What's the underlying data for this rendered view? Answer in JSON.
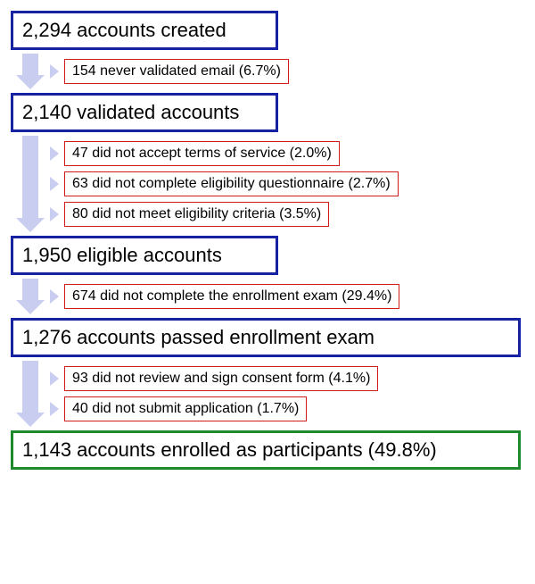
{
  "type": "flowchart",
  "background_color": "#ffffff",
  "arrow_color": "#c9cdf0",
  "stage_border_color": "#1522a3",
  "final_border_color": "#1e8a2e",
  "dropout_border_color": "#d11a1a",
  "stage_fontsize": 22,
  "dropout_fontsize": 16,
  "stages": [
    {
      "label": "2,294 accounts created",
      "width_mode": "fit",
      "dropouts": [
        {
          "label": "154 never validated email (6.7%)"
        }
      ]
    },
    {
      "label": "2,140 validated accounts",
      "width_mode": "fit",
      "dropouts": [
        {
          "label": "47 did not accept terms of service (2.0%)"
        },
        {
          "label": "63 did not complete eligibility questionnaire (2.7%)"
        },
        {
          "label": "80 did not meet eligibility criteria (3.5%)"
        }
      ]
    },
    {
      "label": "1,950 eligible accounts",
      "width_mode": "fit",
      "dropouts": [
        {
          "label": "674 did not complete the enrollment exam (29.4%)"
        }
      ]
    },
    {
      "label": "1,276 accounts passed enrollment exam",
      "width_mode": "full",
      "dropouts": [
        {
          "label": "93 did not review and sign consent form (4.1%)"
        },
        {
          "label": "40 did not submit application (1.7%)"
        }
      ]
    },
    {
      "label": "1,143 accounts enrolled as participants (49.8%)",
      "width_mode": "full",
      "final": true,
      "dropouts": []
    }
  ]
}
